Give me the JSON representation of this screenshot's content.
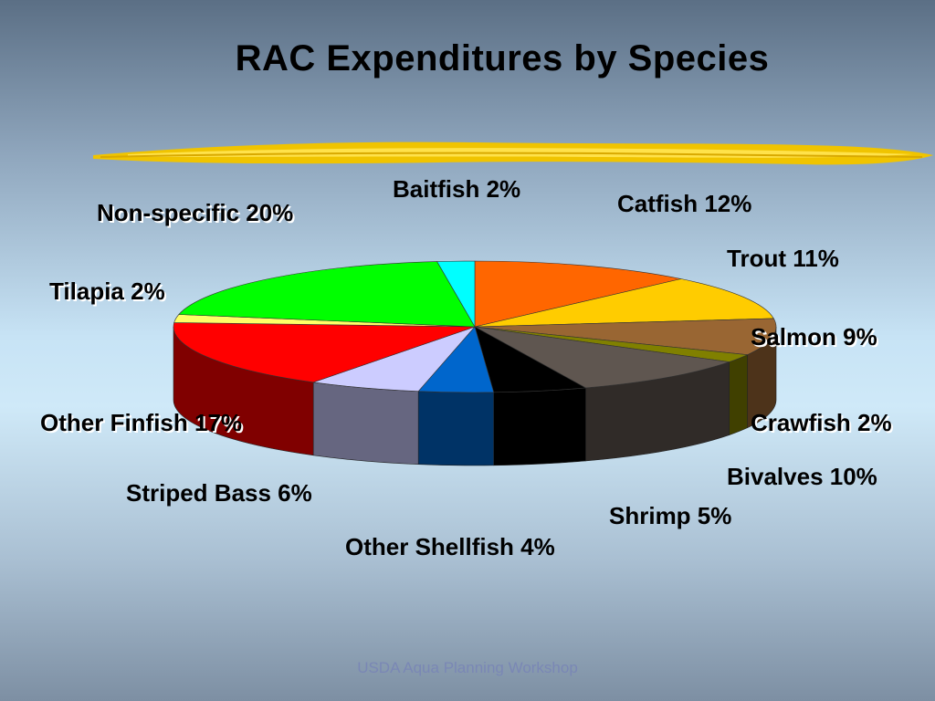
{
  "slide": {
    "title": "RAC Expenditures by Species",
    "footer": "USDA Aqua Planning Workshop"
  },
  "chart_data": {
    "type": "pie",
    "title": "RAC Expenditures by Species",
    "style": "3d-pie",
    "slices": [
      {
        "name": "Catfish",
        "value": 12,
        "label": "Catfish 12%",
        "color": "#ff6600"
      },
      {
        "name": "Trout",
        "value": 11,
        "label": "Trout 11%",
        "color": "#ffcc00"
      },
      {
        "name": "Salmon",
        "value": 9,
        "label": "Salmon 9%",
        "color": "#996633"
      },
      {
        "name": "Crawfish",
        "value": 2,
        "label": "Crawfish 2%",
        "color": "#808000"
      },
      {
        "name": "Bivalves",
        "value": 10,
        "label": "Bivalves 10%",
        "color": "#5f5650"
      },
      {
        "name": "Shrimp",
        "value": 5,
        "label": "Shrimp 5%",
        "color": "#000000"
      },
      {
        "name": "Other Shellfish",
        "value": 4,
        "label": "Other Shellfish 4%",
        "color": "#0066cc"
      },
      {
        "name": "Striped Bass",
        "value": 6,
        "label": "Striped Bass 6%",
        "color": "#ccccff"
      },
      {
        "name": "Other Finfish",
        "value": 17,
        "label": "Other Finfish 17%",
        "color": "#ff0000"
      },
      {
        "name": "Tilapia",
        "value": 2,
        "label": "Tilapia 2%",
        "color": "#ffff66"
      },
      {
        "name": "Non-specific",
        "value": 20,
        "label": "Non-specific 20%",
        "color": "#00ff00"
      },
      {
        "name": "Baitfish",
        "value": 2,
        "label": "Baitfish 2%",
        "color": "#00ffff"
      }
    ]
  }
}
